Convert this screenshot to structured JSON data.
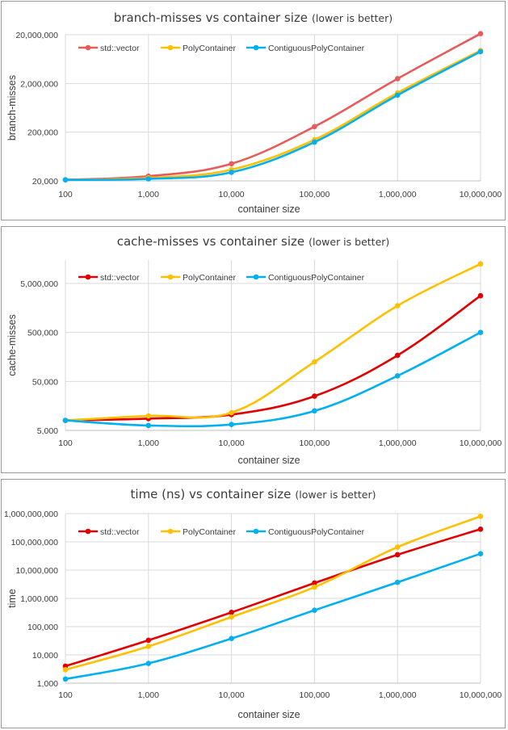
{
  "chart_data": [
    {
      "type": "line",
      "title": "branch-misses vs container size",
      "subtitle": "(lower is better)",
      "xlabel": "container size",
      "ylabel": "branch-misses",
      "x": [
        100,
        1000,
        10000,
        100000,
        1000000,
        10000000
      ],
      "x_tick_labels": [
        "100",
        "1,000",
        "10,000",
        "100,000",
        "1,000,000",
        "10,000,000"
      ],
      "y_scale": "log",
      "ylim": [
        20000,
        20000000
      ],
      "y_tick_values": [
        20000,
        200000,
        2000000,
        20000000
      ],
      "y_tick_labels": [
        "20,000",
        "200,000",
        "2,000,000",
        "20,000,000"
      ],
      "grid": true,
      "legend": "top-left",
      "series": [
        {
          "name": "std::vector",
          "color": "#e85b5b",
          "values": [
            21000,
            25000,
            45000,
            260000,
            2500000,
            21000000
          ]
        },
        {
          "name": "PolyContainer",
          "color": "#ffc000",
          "values": [
            21000,
            23000,
            34000,
            140000,
            1280000,
            9500000
          ]
        },
        {
          "name": "ContiguousPolyContainer",
          "color": "#00b0f0",
          "values": [
            21000,
            22000,
            30000,
            125000,
            1150000,
            9000000
          ]
        }
      ]
    },
    {
      "type": "line",
      "title": "cache-misses vs container size",
      "subtitle": "(lower is better)",
      "xlabel": "container size",
      "ylabel": "cache-misses",
      "x": [
        100,
        1000,
        10000,
        100000,
        1000000,
        10000000
      ],
      "x_tick_labels": [
        "100",
        "1,000",
        "10,000",
        "100,000",
        "1,000,000",
        "10,000,000"
      ],
      "y_scale": "log",
      "ylim": [
        5000,
        15000000
      ],
      "y_tick_values": [
        5000,
        50000,
        500000,
        5000000
      ],
      "y_tick_labels": [
        "5,000",
        "50,000",
        "500,000",
        "5,000,000"
      ],
      "grid": true,
      "legend": "top-left",
      "series": [
        {
          "name": "std::vector",
          "color": "#e00000",
          "values": [
            8000,
            8700,
            10500,
            25000,
            170000,
            2800000
          ]
        },
        {
          "name": "PolyContainer",
          "color": "#ffc000",
          "values": [
            8000,
            9900,
            11500,
            125000,
            1750000,
            12500000
          ]
        },
        {
          "name": "ContiguousPolyContainer",
          "color": "#00b0f0",
          "values": [
            8000,
            6300,
            6600,
            12500,
            65000,
            500000
          ]
        }
      ]
    },
    {
      "type": "line",
      "title": "time (ns) vs container size",
      "subtitle": "(lower is better)",
      "xlabel": "container size",
      "ylabel": "time",
      "x": [
        100,
        1000,
        10000,
        100000,
        1000000,
        10000000
      ],
      "x_tick_labels": [
        "100",
        "1,000",
        "10,000",
        "100,000",
        "1,000,000",
        "10,000,000"
      ],
      "y_scale": "log",
      "ylim": [
        1000,
        1000000000
      ],
      "y_tick_values": [
        1000,
        10000,
        100000,
        1000000,
        10000000,
        100000000,
        1000000000
      ],
      "y_tick_labels": [
        "1,000",
        "10,000",
        "100,000",
        "1,000,000",
        "10,000,000",
        "100,000,000",
        "1,000,000,000"
      ],
      "grid": true,
      "legend": "top-left",
      "series": [
        {
          "name": "std::vector",
          "color": "#e00000",
          "values": [
            4000,
            33000,
            320000,
            3500000,
            35000000,
            280000000
          ]
        },
        {
          "name": "PolyContainer",
          "color": "#ffc000",
          "values": [
            3000,
            20000,
            220000,
            2500000,
            65000000,
            800000000
          ]
        },
        {
          "name": "ContiguousPolyContainer",
          "color": "#00b0f0",
          "values": [
            1400,
            5000,
            38000,
            380000,
            3700000,
            38000000
          ]
        }
      ]
    }
  ]
}
